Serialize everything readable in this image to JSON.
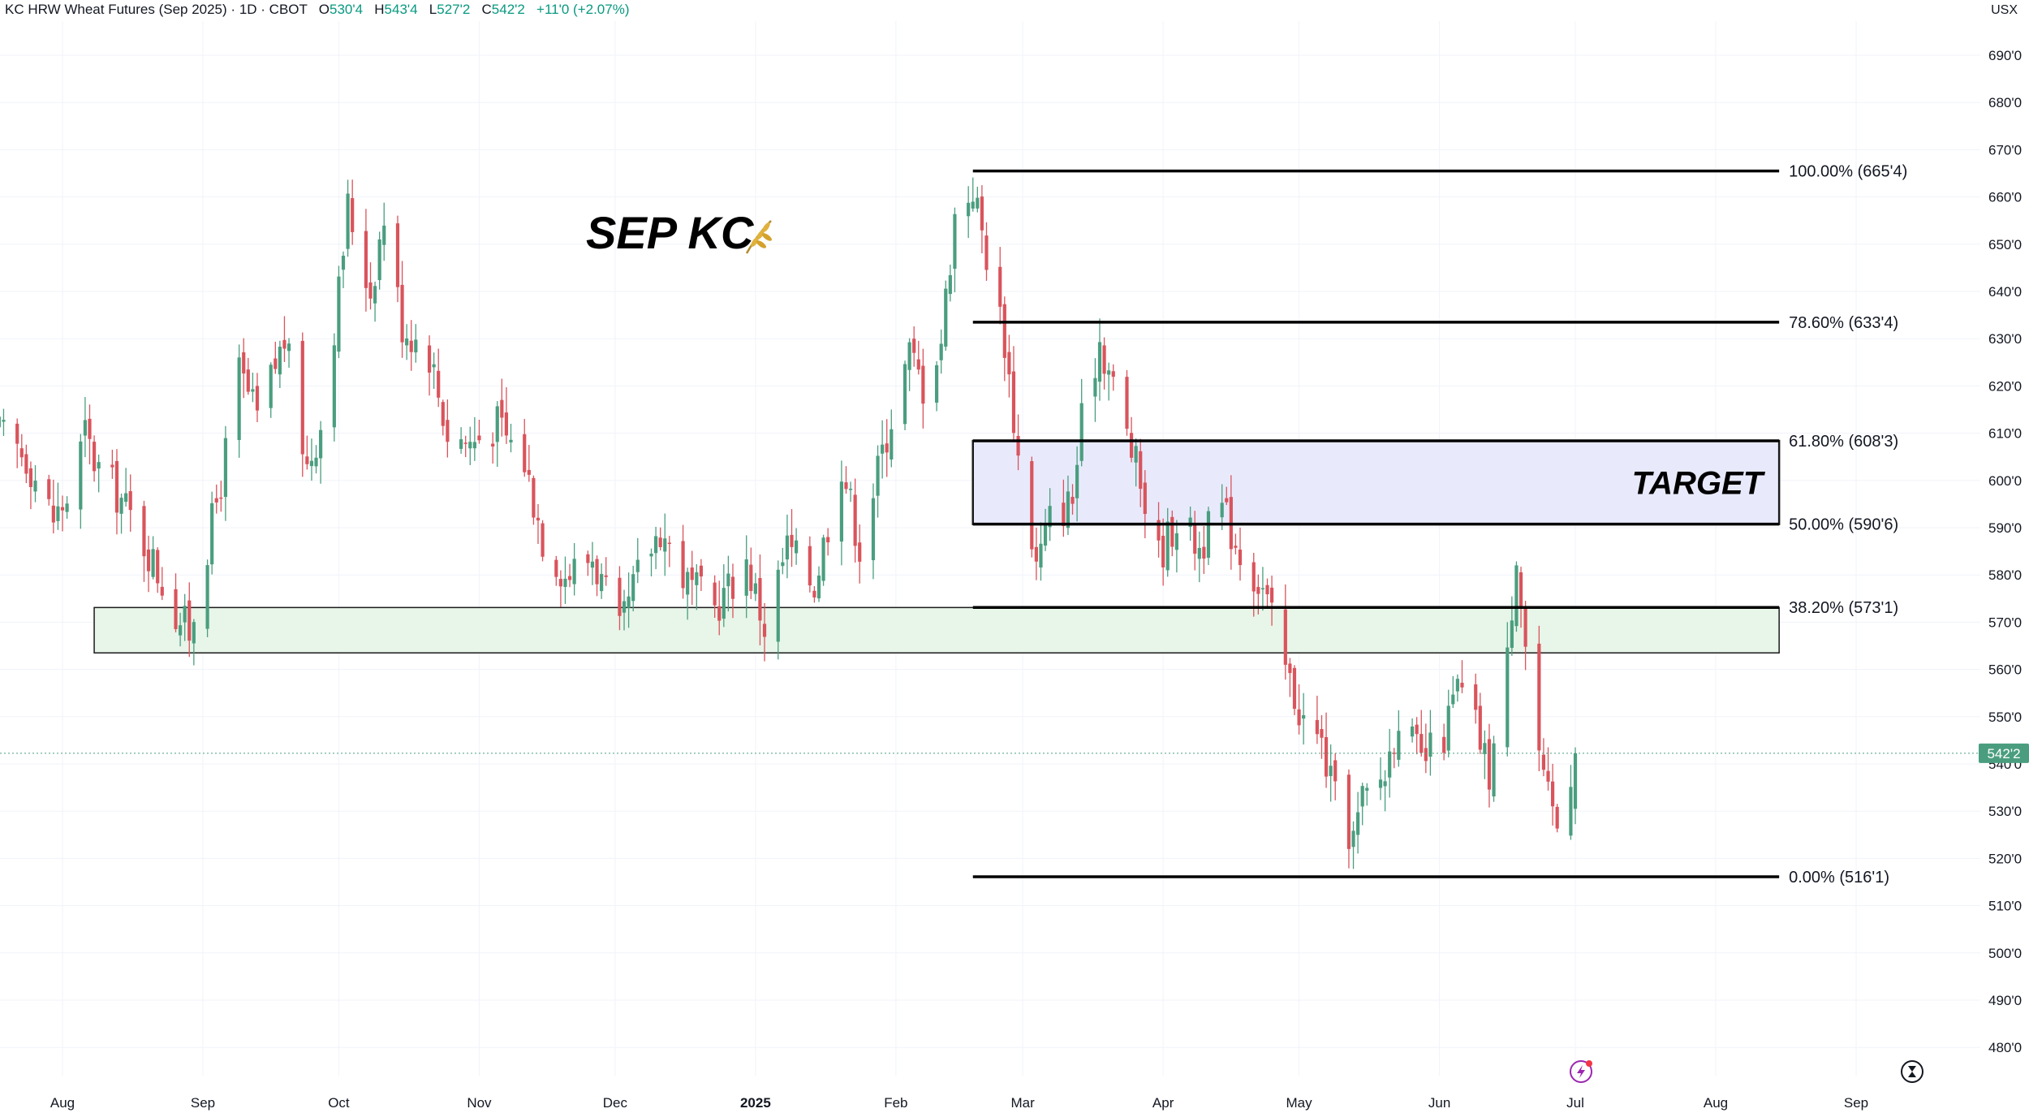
{
  "header": {
    "symbol": "KC HRW Wheat Futures (Sep 2025)",
    "interval": "1D",
    "exchange": "CBOT",
    "open_label": "O",
    "open": "530'4",
    "high_label": "H",
    "high": "543'4",
    "low_label": "L",
    "low": "527'2",
    "close_label": "C",
    "close": "542'2",
    "change": "+11'0 (+2.07%)"
  },
  "unit": "USX",
  "colors": {
    "up": "#4a9e7f",
    "down": "#d9545c",
    "support_fill": "#e8f5e9",
    "target_fill": "#e8eafc",
    "last_price_bg": "#4a9e7f"
  },
  "chart_data": {
    "type": "candlestick",
    "title": "SEP KC",
    "y_axis_ticks": [
      "690'0",
      "680'0",
      "670'0",
      "660'0",
      "650'0",
      "640'0",
      "630'0",
      "620'0",
      "610'0",
      "600'0",
      "590'0",
      "580'0",
      "570'0",
      "560'0",
      "550'0",
      "540'0",
      "530'0",
      "520'0",
      "510'0",
      "500'0",
      "490'0",
      "480'0"
    ],
    "y_tick_values": [
      690,
      680,
      670,
      660,
      650,
      640,
      630,
      620,
      610,
      600,
      590,
      580,
      570,
      560,
      550,
      540,
      530,
      520,
      510,
      500,
      490,
      480
    ],
    "ylim": [
      476,
      694
    ],
    "x_axis_ticks": [
      {
        "label": "Aug",
        "date": "2024-08-01",
        "bold": false
      },
      {
        "label": "Sep",
        "date": "2024-09-01",
        "bold": false
      },
      {
        "label": "Oct",
        "date": "2024-10-01",
        "bold": false
      },
      {
        "label": "Nov",
        "date": "2024-11-01",
        "bold": false
      },
      {
        "label": "Dec",
        "date": "2024-12-01",
        "bold": false
      },
      {
        "label": "2025",
        "date": "2025-01-01",
        "bold": true
      },
      {
        "label": "Feb",
        "date": "2025-02-01",
        "bold": false
      },
      {
        "label": "Mar",
        "date": "2025-03-01",
        "bold": false
      },
      {
        "label": "Apr",
        "date": "2025-04-01",
        "bold": false
      },
      {
        "label": "May",
        "date": "2025-05-01",
        "bold": false
      },
      {
        "label": "Jun",
        "date": "2025-06-01",
        "bold": false
      },
      {
        "label": "Jul",
        "date": "2025-07-01",
        "bold": false
      },
      {
        "label": "Aug",
        "date": "2025-08-01",
        "bold": false
      },
      {
        "label": "Sep",
        "date": "2025-09-01",
        "bold": false
      }
    ],
    "last_price": {
      "label": "542'2",
      "value": 542.25
    },
    "fib_levels": [
      {
        "label": "100.00% (665'4)",
        "value": 665.5
      },
      {
        "label": "78.60% (633'4)",
        "value": 633.5
      },
      {
        "label": "61.80% (608'3)",
        "value": 608.375
      },
      {
        "label": "50.00% (590'6)",
        "value": 590.75
      },
      {
        "label": "38.20% (573'1)",
        "value": 573.125
      },
      {
        "label": "0.00% (516'1)",
        "value": 516.125
      }
    ],
    "fib_range": {
      "start_date": "2025-02-18",
      "end_date": "2025-08-15"
    },
    "zones": [
      {
        "name": "support",
        "label": "",
        "start_date": "2024-08-08",
        "end_date": "2025-08-15",
        "top": 573.1,
        "bottom": 563.5
      },
      {
        "name": "target",
        "label": "TARGET",
        "start_date": "2025-02-18",
        "end_date": "2025-08-15",
        "top": 608.375,
        "bottom": 590.75
      }
    ],
    "anchors": [
      {
        "date": "2024-07-18",
        "close": 610
      },
      {
        "date": "2024-07-24",
        "close": 605
      },
      {
        "date": "2024-07-30",
        "close": 592
      },
      {
        "date": "2024-08-02",
        "close": 596
      },
      {
        "date": "2024-08-06",
        "close": 610
      },
      {
        "date": "2024-08-08",
        "close": 604
      },
      {
        "date": "2024-08-14",
        "close": 596
      },
      {
        "date": "2024-08-20",
        "close": 585
      },
      {
        "date": "2024-08-26",
        "close": 572
      },
      {
        "date": "2024-08-29",
        "close": 568
      },
      {
        "date": "2024-09-05",
        "close": 600
      },
      {
        "date": "2024-09-09",
        "close": 623
      },
      {
        "date": "2024-09-13",
        "close": 613
      },
      {
        "date": "2024-09-19",
        "close": 630
      },
      {
        "date": "2024-09-24",
        "close": 603
      },
      {
        "date": "2024-09-27",
        "close": 612
      },
      {
        "date": "2024-10-01",
        "close": 640
      },
      {
        "date": "2024-10-03",
        "close": 658
      },
      {
        "date": "2024-10-08",
        "close": 640
      },
      {
        "date": "2024-10-11",
        "close": 656
      },
      {
        "date": "2024-10-15",
        "close": 633
      },
      {
        "date": "2024-10-21",
        "close": 627
      },
      {
        "date": "2024-10-25",
        "close": 610
      },
      {
        "date": "2024-10-30",
        "close": 608
      },
      {
        "date": "2024-11-05",
        "close": 612
      },
      {
        "date": "2024-11-11",
        "close": 604
      },
      {
        "date": "2024-11-15",
        "close": 588
      },
      {
        "date": "2024-11-20",
        "close": 580
      },
      {
        "date": "2024-11-26",
        "close": 584
      },
      {
        "date": "2024-12-02",
        "close": 567
      },
      {
        "date": "2024-12-06",
        "close": 580
      },
      {
        "date": "2024-12-11",
        "close": 590
      },
      {
        "date": "2024-12-17",
        "close": 578
      },
      {
        "date": "2024-12-23",
        "close": 573
      },
      {
        "date": "2024-12-30",
        "close": 583
      },
      {
        "date": "2025-01-03",
        "close": 569
      },
      {
        "date": "2025-01-08",
        "close": 586
      },
      {
        "date": "2025-01-14",
        "close": 578
      },
      {
        "date": "2025-01-20",
        "close": 604
      },
      {
        "date": "2025-01-24",
        "close": 586
      },
      {
        "date": "2025-01-30",
        "close": 610
      },
      {
        "date": "2025-02-04",
        "close": 627
      },
      {
        "date": "2025-02-07",
        "close": 620
      },
      {
        "date": "2025-02-11",
        "close": 630
      },
      {
        "date": "2025-02-14",
        "close": 656
      },
      {
        "date": "2025-02-18",
        "close": 662
      },
      {
        "date": "2025-02-21",
        "close": 648
      },
      {
        "date": "2025-02-25",
        "close": 630
      },
      {
        "date": "2025-02-28",
        "close": 605
      },
      {
        "date": "2025-03-04",
        "close": 582
      },
      {
        "date": "2025-03-07",
        "close": 592
      },
      {
        "date": "2025-03-12",
        "close": 596
      },
      {
        "date": "2025-03-14",
        "close": 612
      },
      {
        "date": "2025-03-18",
        "close": 630
      },
      {
        "date": "2025-03-21",
        "close": 620
      },
      {
        "date": "2025-03-26",
        "close": 603
      },
      {
        "date": "2025-03-31",
        "close": 584
      },
      {
        "date": "2025-04-04",
        "close": 592
      },
      {
        "date": "2025-04-09",
        "close": 586
      },
      {
        "date": "2025-04-14",
        "close": 594
      },
      {
        "date": "2025-04-18",
        "close": 585
      },
      {
        "date": "2025-04-23",
        "close": 577
      },
      {
        "date": "2025-04-28",
        "close": 560
      },
      {
        "date": "2025-05-02",
        "close": 549
      },
      {
        "date": "2025-05-06",
        "close": 544
      },
      {
        "date": "2025-05-09",
        "close": 532
      },
      {
        "date": "2025-05-13",
        "close": 524
      },
      {
        "date": "2025-05-15",
        "close": 532
      },
      {
        "date": "2025-05-20",
        "close": 538
      },
      {
        "date": "2025-05-23",
        "close": 551
      },
      {
        "date": "2025-05-28",
        "close": 540
      },
      {
        "date": "2025-06-02",
        "close": 546
      },
      {
        "date": "2025-06-05",
        "close": 556
      },
      {
        "date": "2025-06-09",
        "close": 548
      },
      {
        "date": "2025-06-12",
        "close": 538
      },
      {
        "date": "2025-06-16",
        "close": 562
      },
      {
        "date": "2025-06-18",
        "close": 586
      },
      {
        "date": "2025-06-20",
        "close": 565
      },
      {
        "date": "2025-06-24",
        "close": 535
      },
      {
        "date": "2025-06-27",
        "close": 527
      },
      {
        "date": "2025-07-01",
        "close": 542.25
      }
    ]
  }
}
